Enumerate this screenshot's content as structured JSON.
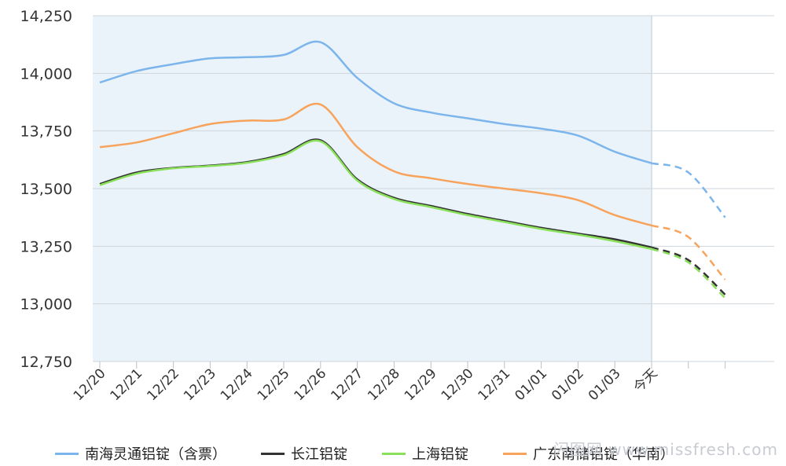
{
  "chart_data": {
    "type": "line",
    "x": [
      "12/20",
      "12/21",
      "12/22",
      "12/23",
      "12/24",
      "12/25",
      "12/26",
      "12/27",
      "12/28",
      "12/29",
      "12/30",
      "12/31",
      "01/01",
      "01/02",
      "01/03",
      "今天",
      "",
      ""
    ],
    "ylim": [
      12750,
      14250
    ],
    "yticks": [
      14250,
      14000,
      13750,
      13500,
      13250,
      13000,
      12750
    ],
    "ytick_labels": [
      "14,250",
      "14,000",
      "13,750",
      "13,500",
      "13,250",
      "13,000",
      "12,750"
    ],
    "grid": true,
    "highlight_range": [
      "12/20",
      "今天"
    ],
    "forecast_from": "今天",
    "legend_position": "bottom",
    "series": [
      {
        "name": "南海灵通铝锭（含票）",
        "color": "#7cb5ec",
        "values": [
          13960,
          14010,
          14040,
          14065,
          14070,
          14080,
          14135,
          13980,
          13870,
          13830,
          13805,
          13780,
          13760,
          13730,
          13660,
          13610,
          13570,
          13375
        ]
      },
      {
        "name": "长江铝锭",
        "color": "#333333",
        "values": [
          13520,
          13570,
          13590,
          13600,
          13615,
          13650,
          13710,
          13540,
          13460,
          13425,
          13390,
          13360,
          13330,
          13305,
          13280,
          13245,
          13190,
          13040
        ]
      },
      {
        "name": "上海铝锭",
        "color": "#8ae05a",
        "values": [
          13515,
          13565,
          13588,
          13598,
          13612,
          13645,
          13705,
          13535,
          13455,
          13420,
          13385,
          13355,
          13325,
          13300,
          13272,
          13238,
          13180,
          13025
        ]
      },
      {
        "name": "广东南储铝锭（华南）",
        "color": "#f7a35c",
        "values": [
          13680,
          13700,
          13740,
          13780,
          13795,
          13800,
          13865,
          13680,
          13575,
          13545,
          13520,
          13500,
          13480,
          13450,
          13385,
          13340,
          13290,
          13105
        ]
      }
    ]
  },
  "legend": [
    {
      "label": "南海灵通铝锭（含票）",
      "color": "#7cb5ec"
    },
    {
      "label": "长江铝锭",
      "color": "#333333"
    },
    {
      "label": "上海铝锭",
      "color": "#8ae05a"
    },
    {
      "label": "广东南储铝锭（华南）",
      "color": "#f7a35c"
    }
  ],
  "watermark": "闪图网  www.missfresh.com"
}
